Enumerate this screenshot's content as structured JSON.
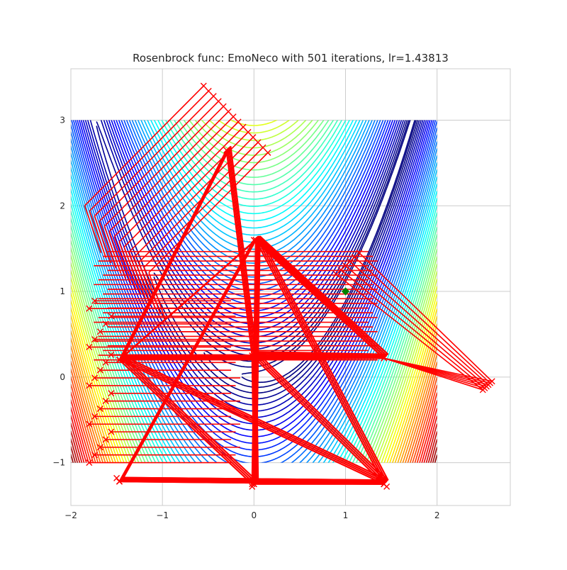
{
  "chart_data": {
    "type": "line",
    "title": "Rosenbrock func: EmoNeco with 501 iterations, lr=1.43813",
    "xlabel": "",
    "ylabel": "",
    "xlim": [
      -2,
      2.8
    ],
    "ylim": [
      -1.5,
      3.6
    ],
    "x_ticks": [
      -2,
      -1,
      0,
      1,
      2
    ],
    "y_ticks": [
      -1,
      0,
      1,
      2,
      3
    ],
    "x_tick_labels": [
      "−2",
      "−1",
      "0",
      "1",
      "2"
    ],
    "y_tick_labels": [
      "−1",
      "0",
      "1",
      "2",
      "3"
    ],
    "grid": true,
    "contour": {
      "function": "rosenbrock",
      "x_range": [
        -2,
        2
      ],
      "y_range": [
        -1,
        3
      ],
      "colormap": "jet"
    },
    "minimum": {
      "x": 1.0,
      "y": 1.0,
      "color": "#008000"
    },
    "path_color": "#ff0000",
    "path": [
      [
        -1.47,
        -1.22
      ],
      [
        1.42,
        -1.25
      ],
      [
        0.0,
        -1.25
      ],
      [
        -0.02,
        0.25
      ],
      [
        1.42,
        0.22
      ],
      [
        0.02,
        1.6
      ],
      [
        -1.47,
        0.2
      ],
      [
        -0.3,
        2.65
      ],
      [
        -0.02,
        0.25
      ],
      [
        1.42,
        -1.25
      ],
      [
        -1.47,
        -1.22
      ],
      [
        0.0,
        1.6
      ],
      [
        1.42,
        0.22
      ],
      [
        -1.47,
        0.2
      ],
      [
        -0.02,
        -1.25
      ],
      [
        0.02,
        1.6
      ],
      [
        1.42,
        -1.25
      ],
      [
        -1.47,
        0.2
      ]
    ],
    "path_offsets": {
      "zigzag_upper_left": {
        "start": [
          -0.55,
          3.4
        ],
        "end": [
          -1.85,
          2.0
        ]
      },
      "fan_right": {
        "start": [
          1.15,
          1.45
        ],
        "end": [
          2.6,
          -0.05
        ]
      },
      "fan_left": {
        "start": [
          -1.8,
          -0.1
        ],
        "end": [
          -0.25,
          0.15
        ]
      }
    }
  }
}
